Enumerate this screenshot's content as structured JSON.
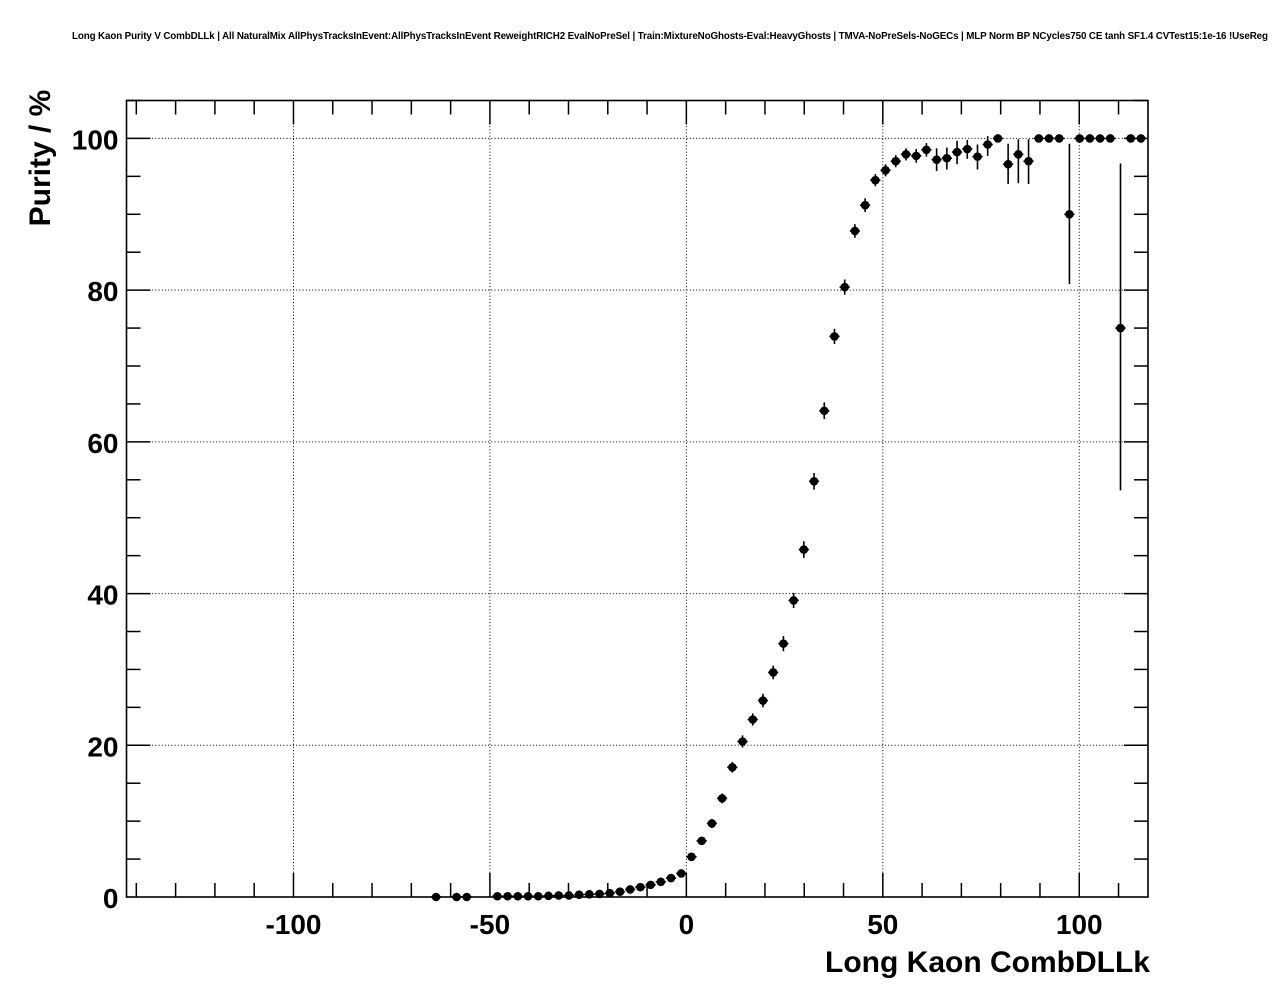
{
  "page": {
    "background": "#ffffff",
    "foreground": "#000000"
  },
  "chart_data": {
    "type": "scatter",
    "title": "Long Kaon Purity V CombDLLk | All NaturalMix AllPhysTracksInEvent:AllPhysTracksInEvent ReweightRICH2 EvalNoPreSel | Train:MixtureNoGhosts-Eval:HeavyGhosts | TMVA-NoPreSels-NoGECs | MLP Norm BP NCycles750 CE tanh SF1.4 CVTest15:1e-16 !UseReg",
    "xlabel": "Long Kaon CombDLLk",
    "ylabel": "Purity / %",
    "xlim": [
      -142.5,
      117.5
    ],
    "ylim": [
      0,
      105
    ],
    "x_major_ticks": [
      -100,
      -50,
      0,
      50,
      100
    ],
    "x_minor_step": 10,
    "y_major_ticks": [
      0,
      20,
      40,
      60,
      80,
      100
    ],
    "y_minor_step": 5,
    "grid": "dotted-on-major-ticks",
    "legend": "none",
    "marker": "filled-black-circle",
    "x_bin_halfwidth": 1.3,
    "points_format": [
      "x",
      "y",
      "yerr_minus",
      "yerr_plus"
    ],
    "points": [
      [
        -63.7,
        0.0,
        0,
        0
      ],
      [
        -58.5,
        0.0,
        0,
        0
      ],
      [
        -55.9,
        0.0,
        0,
        0
      ],
      [
        -48.1,
        0.1,
        0,
        0
      ],
      [
        -45.5,
        0.1,
        0,
        0
      ],
      [
        -42.9,
        0.1,
        0,
        0
      ],
      [
        -40.3,
        0.1,
        0,
        0
      ],
      [
        -37.7,
        0.1,
        0,
        0
      ],
      [
        -35.1,
        0.15,
        0,
        0
      ],
      [
        -32.5,
        0.2,
        0,
        0
      ],
      [
        -29.9,
        0.2,
        0,
        0
      ],
      [
        -27.3,
        0.3,
        0,
        0
      ],
      [
        -24.7,
        0.35,
        0,
        0
      ],
      [
        -22.1,
        0.4,
        0,
        0
      ],
      [
        -19.5,
        0.5,
        0.15,
        0.15
      ],
      [
        -16.9,
        0.7,
        0.2,
        0.2
      ],
      [
        -14.3,
        1.0,
        0.2,
        0.2
      ],
      [
        -11.7,
        1.3,
        0.25,
        0.25
      ],
      [
        -9.1,
        1.6,
        0.3,
        0.3
      ],
      [
        -6.5,
        2.0,
        0.3,
        0.3
      ],
      [
        -3.9,
        2.5,
        0.35,
        0.35
      ],
      [
        -1.3,
        3.1,
        0.4,
        0.4
      ],
      [
        1.3,
        5.3,
        0.5,
        0.5
      ],
      [
        3.9,
        7.4,
        0.55,
        0.55
      ],
      [
        6.5,
        9.7,
        0.6,
        0.6
      ],
      [
        9.1,
        13.0,
        0.65,
        0.65
      ],
      [
        11.7,
        17.1,
        0.7,
        0.7
      ],
      [
        14.3,
        20.5,
        0.8,
        0.8
      ],
      [
        16.9,
        23.4,
        0.8,
        0.8
      ],
      [
        19.5,
        25.9,
        0.9,
        0.9
      ],
      [
        22.1,
        29.6,
        0.9,
        0.9
      ],
      [
        24.7,
        33.4,
        1.0,
        1.0
      ],
      [
        27.3,
        39.1,
        1.0,
        1.0
      ],
      [
        29.9,
        45.8,
        1.1,
        1.1
      ],
      [
        32.5,
        54.8,
        1.1,
        1.1
      ],
      [
        35.1,
        64.1,
        1.1,
        1.1
      ],
      [
        37.7,
        73.9,
        1.0,
        1.0
      ],
      [
        40.3,
        80.4,
        1.0,
        1.0
      ],
      [
        42.9,
        87.8,
        0.9,
        0.9
      ],
      [
        45.5,
        91.2,
        0.9,
        0.9
      ],
      [
        48.1,
        94.5,
        0.8,
        0.8
      ],
      [
        50.7,
        95.8,
        0.8,
        0.8
      ],
      [
        53.3,
        97.0,
        0.8,
        0.8
      ],
      [
        55.9,
        97.9,
        0.8,
        0.8
      ],
      [
        58.5,
        97.7,
        0.9,
        0.9
      ],
      [
        61.1,
        98.5,
        0.9,
        0.9
      ],
      [
        63.7,
        97.2,
        1.5,
        1.5
      ],
      [
        66.3,
        97.4,
        1.5,
        1.4
      ],
      [
        68.9,
        98.2,
        1.6,
        1.5
      ],
      [
        71.5,
        98.6,
        1.3,
        1.2
      ],
      [
        74.1,
        97.6,
        1.7,
        1.6
      ],
      [
        76.7,
        99.2,
        1.5,
        1.1
      ],
      [
        79.3,
        100.0,
        0.4,
        0.1
      ],
      [
        81.9,
        96.6,
        2.6,
        2.7
      ],
      [
        84.5,
        97.9,
        3.8,
        2.0
      ],
      [
        87.1,
        97.0,
        3.0,
        2.9
      ],
      [
        89.7,
        100.0,
        0.3,
        0.1
      ],
      [
        92.3,
        100.0,
        0.3,
        0.1
      ],
      [
        94.9,
        100.0,
        0.3,
        0.1
      ],
      [
        97.5,
        90.0,
        9.2,
        9.3
      ],
      [
        100.1,
        100.0,
        0.2,
        0.1
      ],
      [
        102.7,
        100.0,
        0.2,
        0.1
      ],
      [
        105.3,
        100.0,
        0.2,
        0.1
      ],
      [
        107.9,
        100.0,
        0.2,
        0.1
      ],
      [
        110.5,
        75.0,
        21.4,
        21.7
      ],
      [
        113.1,
        100.0,
        0.3,
        0.1
      ],
      [
        115.7,
        100.0,
        0.3,
        0.1
      ]
    ]
  }
}
